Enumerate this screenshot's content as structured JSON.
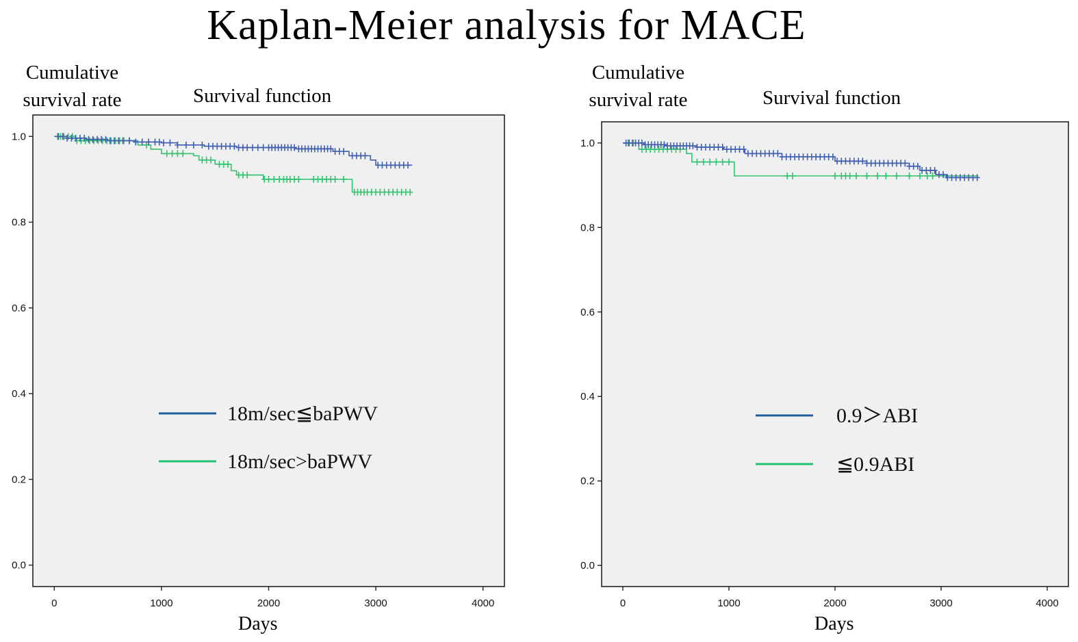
{
  "page": {
    "title": "Kaplan-Meier analysis for MACE"
  },
  "chart_data": [
    {
      "type": "line",
      "subtitle": "Survival function",
      "xlabel": "Days",
      "ylabel": "Cumulative survival rate",
      "ylabel_lines": [
        "Cumulative",
        "survival rate"
      ],
      "xlim": [
        -200,
        4200
      ],
      "ylim": [
        -0.05,
        1.05
      ],
      "xticks": [
        0,
        1000,
        2000,
        3000,
        4000
      ],
      "yticks": [
        0.0,
        0.2,
        0.4,
        0.6,
        0.8,
        1.0
      ],
      "xtick_labels": [
        "0",
        "1000",
        "2000",
        "3000",
        "4000"
      ],
      "ytick_labels": [
        "0.0",
        "0.2",
        "0.4",
        "0.6",
        "0.8",
        "1.0"
      ],
      "grid": false,
      "legend_position": "center",
      "series": [
        {
          "name": "18m/sec≦baPWV",
          "color": "#3f5fae",
          "legend_color": "#1f5e9e",
          "steps": [
            [
              0,
              1.0
            ],
            [
              120,
              0.996
            ],
            [
              300,
              0.993
            ],
            [
              500,
              0.99
            ],
            [
              750,
              0.987
            ],
            [
              1000,
              0.985
            ],
            [
              1150,
              0.98
            ],
            [
              1400,
              0.977
            ],
            [
              1700,
              0.974
            ],
            [
              2250,
              0.971
            ],
            [
              2600,
              0.965
            ],
            [
              2750,
              0.955
            ],
            [
              2950,
              0.945
            ],
            [
              3000,
              0.933
            ],
            [
              3340,
              0.933
            ]
          ],
          "censored": [
            40,
            80,
            120,
            160,
            200,
            240,
            280,
            320,
            360,
            400,
            440,
            480,
            520,
            560,
            600,
            640,
            700,
            760,
            820,
            880,
            940,
            980,
            1020,
            1080,
            1150,
            1230,
            1300,
            1380,
            1440,
            1480,
            1520,
            1560,
            1600,
            1640,
            1680,
            1720,
            1760,
            1800,
            1850,
            1900,
            1950,
            2000,
            2030,
            2060,
            2090,
            2120,
            2150,
            2180,
            2210,
            2240,
            2280,
            2310,
            2340,
            2370,
            2400,
            2430,
            2460,
            2490,
            2520,
            2550,
            2580,
            2620,
            2660,
            2700,
            2780,
            2820,
            2860,
            2900,
            3020,
            3060,
            3100,
            3140,
            3180,
            3220,
            3260,
            3300
          ]
        },
        {
          "name": "18m/sec>baPWV",
          "color": "#33c26f",
          "legend_color": "#1fbf74",
          "steps": [
            [
              0,
              1.0
            ],
            [
              200,
              0.99
            ],
            [
              500,
              0.99
            ],
            [
              780,
              0.98
            ],
            [
              900,
              0.97
            ],
            [
              1000,
              0.96
            ],
            [
              1300,
              0.955
            ],
            [
              1350,
              0.945
            ],
            [
              1500,
              0.935
            ],
            [
              1650,
              0.92
            ],
            [
              1700,
              0.91
            ],
            [
              1950,
              0.9
            ],
            [
              2780,
              0.87
            ],
            [
              3340,
              0.87
            ]
          ],
          "censored": [
            30,
            60,
            90,
            130,
            170,
            210,
            250,
            290,
            330,
            370,
            410,
            450,
            490,
            530,
            570,
            610,
            650,
            700,
            860,
            1050,
            1100,
            1150,
            1200,
            1380,
            1420,
            1460,
            1540,
            1580,
            1620,
            1720,
            1760,
            1800,
            1960,
            2000,
            2050,
            2100,
            2140,
            2170,
            2200,
            2240,
            2280,
            2420,
            2460,
            2500,
            2540,
            2580,
            2620,
            2700,
            2800,
            2830,
            2860,
            2890,
            2920,
            2960,
            3000,
            3040,
            3080,
            3120,
            3160,
            3200,
            3240,
            3280,
            3320
          ]
        }
      ]
    },
    {
      "type": "line",
      "subtitle": "Survival function",
      "xlabel": "Days",
      "ylabel": "Cumulative survival rate",
      "ylabel_lines": [
        "Cumulative",
        "survival rate"
      ],
      "xlim": [
        -200,
        4200
      ],
      "ylim": [
        -0.05,
        1.05
      ],
      "xticks": [
        0,
        1000,
        2000,
        3000,
        4000
      ],
      "yticks": [
        0.0,
        0.2,
        0.4,
        0.6,
        0.8,
        1.0
      ],
      "xtick_labels": [
        "0",
        "1000",
        "2000",
        "3000",
        "4000"
      ],
      "ytick_labels": [
        "0.0",
        "0.2",
        "0.4",
        "0.6",
        "0.8",
        "1.0"
      ],
      "grid": false,
      "legend_position": "center",
      "series": [
        {
          "name": "0.9＞ABI",
          "color": "#3f5fae",
          "legend_color": "#1f5e9e",
          "steps": [
            [
              0,
              1.0
            ],
            [
              200,
              0.996
            ],
            [
              400,
              0.993
            ],
            [
              700,
              0.99
            ],
            [
              950,
              0.985
            ],
            [
              1150,
              0.975
            ],
            [
              1500,
              0.967
            ],
            [
              2000,
              0.957
            ],
            [
              2300,
              0.952
            ],
            [
              2700,
              0.945
            ],
            [
              2800,
              0.935
            ],
            [
              2950,
              0.925
            ],
            [
              3050,
              0.918
            ],
            [
              3350,
              0.918
            ]
          ],
          "censored": [
            30,
            60,
            90,
            120,
            150,
            180,
            210,
            240,
            270,
            300,
            330,
            360,
            390,
            420,
            450,
            480,
            510,
            540,
            570,
            600,
            630,
            660,
            700,
            740,
            780,
            820,
            860,
            900,
            940,
            980,
            1020,
            1060,
            1100,
            1140,
            1180,
            1220,
            1260,
            1300,
            1340,
            1380,
            1420,
            1460,
            1500,
            1540,
            1580,
            1620,
            1660,
            1700,
            1740,
            1780,
            1820,
            1860,
            1900,
            1940,
            1980,
            2020,
            2060,
            2100,
            2140,
            2180,
            2220,
            2260,
            2300,
            2340,
            2380,
            2420,
            2460,
            2500,
            2540,
            2580,
            2620,
            2660,
            2700,
            2740,
            2780,
            2820,
            2860,
            2900,
            2940,
            2980,
            3020,
            3060,
            3100,
            3140,
            3180,
            3220,
            3260,
            3300,
            3340
          ]
        },
        {
          "name": "≦0.9ABI",
          "color": "#33c26f",
          "legend_color": "#1fbf74",
          "steps": [
            [
              0,
              1.0
            ],
            [
              150,
              0.985
            ],
            [
              600,
              0.975
            ],
            [
              650,
              0.955
            ],
            [
              1050,
              0.922
            ],
            [
              3350,
              0.922
            ]
          ],
          "censored": [
            50,
            100,
            180,
            220,
            260,
            300,
            340,
            380,
            420,
            460,
            500,
            540,
            700,
            760,
            820,
            880,
            940,
            1000,
            1550,
            1600,
            2000,
            2060,
            2100,
            2140,
            2200,
            2300,
            2400,
            2480,
            2580,
            2700,
            2800,
            2870,
            2920
          ]
        }
      ]
    }
  ]
}
